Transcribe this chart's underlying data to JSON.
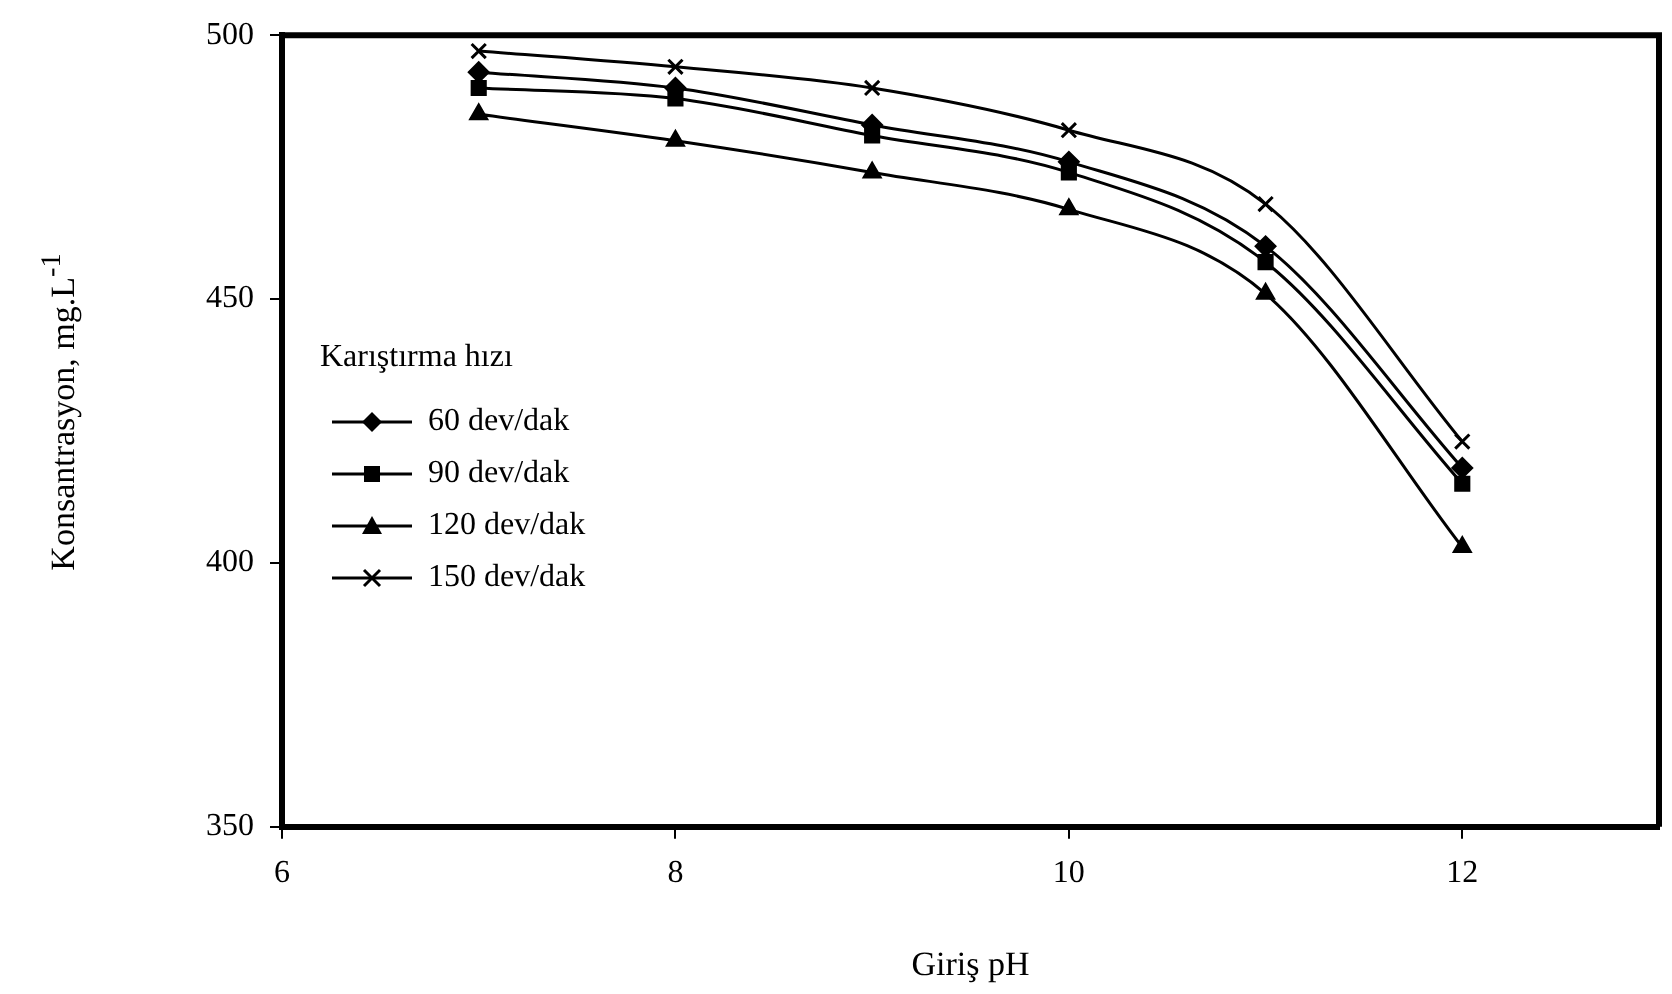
{
  "chart_data": {
    "type": "line",
    "xlabel": "Giriş pH",
    "ylabel": "Konsantrasyon, mg.L$^{-1}$",
    "legend_title": "Karıştırma hızı",
    "legend": "bottom left",
    "x": [
      7,
      8,
      9,
      10,
      11,
      12
    ],
    "xlim": [
      6,
      13
    ],
    "xticks": [
      6,
      8,
      10,
      12
    ],
    "ylim": [
      350,
      500
    ],
    "yticks": [
      350,
      400,
      450,
      500
    ],
    "grid": false,
    "series": [
      {
        "name": "60 dev/dak",
        "color": "#000000",
        "marker": "diamond",
        "values": [
          493,
          490,
          483,
          476,
          460,
          418
        ]
      },
      {
        "name": "90 dev/dak",
        "color": "#000000",
        "marker": "square",
        "values": [
          490,
          488,
          481,
          474,
          457,
          415
        ]
      },
      {
        "name": "120 dev/dak",
        "color": "#000000",
        "marker": "triangle",
        "values": [
          485,
          480,
          474,
          467,
          451,
          403
        ]
      },
      {
        "name": "150 dev/dak",
        "color": "#000000",
        "marker": "cross",
        "values": [
          497,
          494,
          490,
          482,
          468,
          423
        ]
      }
    ]
  }
}
